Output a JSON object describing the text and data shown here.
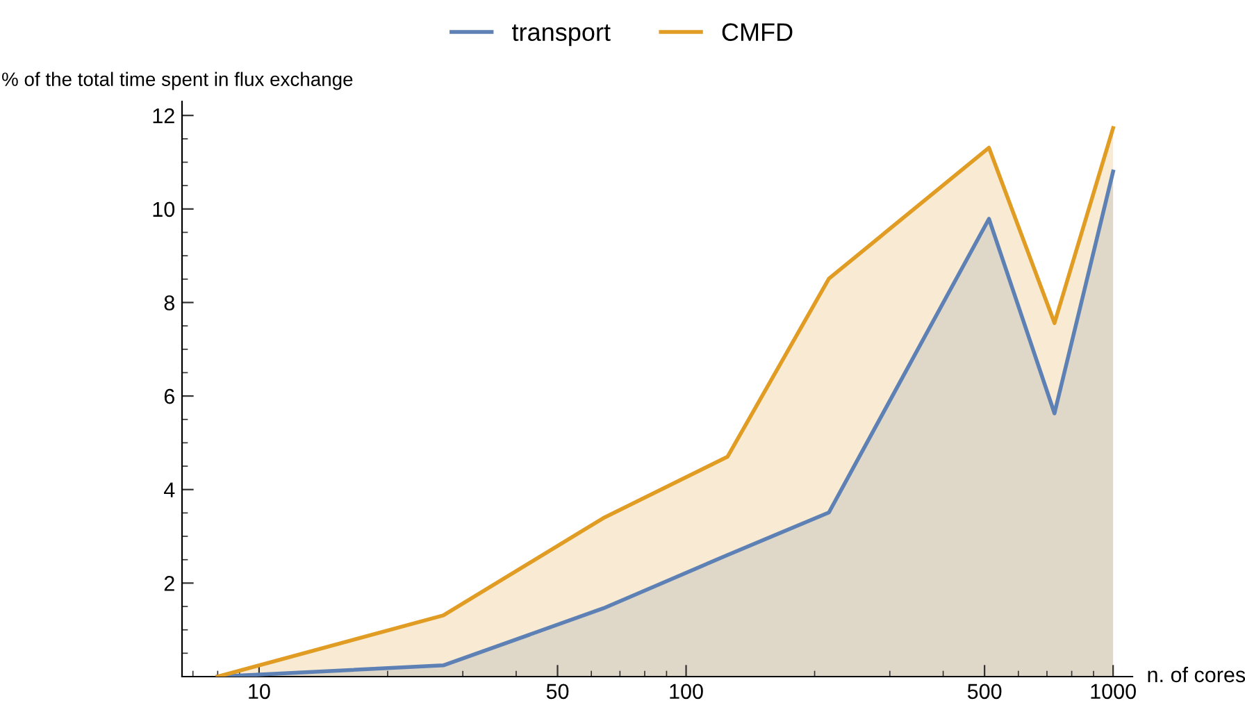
{
  "chart_data": {
    "type": "area",
    "xlabel": "n. of cores",
    "ylabel": "% of the total time spent in flux exchange",
    "x": [
      8,
      27,
      64,
      125,
      216,
      512,
      729,
      1000
    ],
    "series": [
      {
        "name": "transport",
        "color": "#5e81b5",
        "values": [
          0,
          0.24,
          1.46,
          2.6,
          3.51,
          9.79,
          5.63,
          10.8
        ]
      },
      {
        "name": "CMFD",
        "color": "#e19c24",
        "values": [
          0,
          1.31,
          3.39,
          4.7,
          8.51,
          11.31,
          7.56,
          11.73
        ]
      }
    ],
    "log": "x",
    "xlim": [
      6.6,
      1110
    ],
    "xticks": [
      10,
      50,
      100,
      500,
      1000
    ],
    "ylim": [
      0,
      12.3
    ],
    "yticks": [
      2,
      4,
      6,
      8,
      10,
      12
    ],
    "grid": false,
    "legend": "top",
    "line_style": "solid",
    "marker": "none"
  }
}
